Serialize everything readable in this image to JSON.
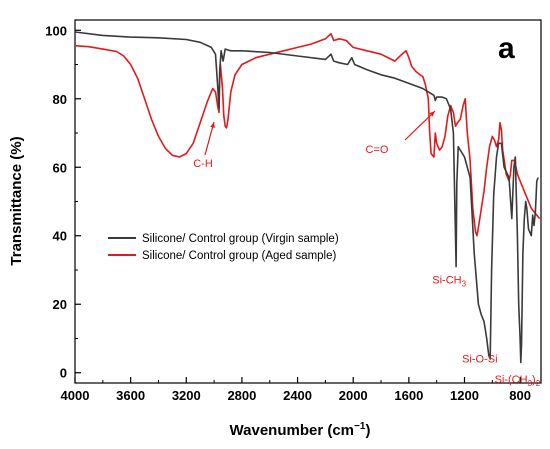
{
  "chart_data": {
    "type": "line",
    "panel_label": "a",
    "xlabel_main": "Wavenumber (cm",
    "xlabel_sup": "−1",
    "xlabel_end": ")",
    "ylabel": "Transmittance (%)",
    "xlim": [
      4000,
      650
    ],
    "ylim": [
      -3,
      103
    ],
    "x_reversed": true,
    "grid": false,
    "legend_position": "center-left",
    "x_ticks": [
      "4000",
      "3600",
      "3200",
      "2800",
      "2400",
      "2000",
      "1600",
      "1200",
      "800"
    ],
    "x_tick_values": [
      4000,
      3600,
      3200,
      2800,
      2400,
      2000,
      1600,
      1200,
      800
    ],
    "y_ticks": [
      "0",
      "20",
      "40",
      "60",
      "80",
      "100"
    ],
    "y_tick_values": [
      0,
      20,
      40,
      60,
      80,
      100
    ],
    "series": [
      {
        "name": "Silicone/ Control group (Virgin sample)",
        "color": "#3a3a3a",
        "points": [
          [
            4000,
            99.5
          ],
          [
            3800,
            98.5
          ],
          [
            3600,
            98
          ],
          [
            3400,
            97.8
          ],
          [
            3200,
            97.3
          ],
          [
            3100,
            96.5
          ],
          [
            3020,
            95
          ],
          [
            2990,
            93
          ],
          [
            2975,
            84
          ],
          [
            2965,
            77
          ],
          [
            2960,
            88
          ],
          [
            2950,
            94
          ],
          [
            2935,
            91
          ],
          [
            2920,
            94.5
          ],
          [
            2880,
            94
          ],
          [
            2800,
            94
          ],
          [
            2600,
            93.5
          ],
          [
            2400,
            92.5
          ],
          [
            2200,
            91.5
          ],
          [
            2160,
            93
          ],
          [
            2140,
            91
          ],
          [
            2100,
            90.5
          ],
          [
            2040,
            90
          ],
          [
            2010,
            92
          ],
          [
            1990,
            90
          ],
          [
            1900,
            88.5
          ],
          [
            1800,
            87
          ],
          [
            1700,
            86
          ],
          [
            1600,
            84.5
          ],
          [
            1500,
            83
          ],
          [
            1460,
            82
          ],
          [
            1420,
            81
          ],
          [
            1410,
            79.5
          ],
          [
            1400,
            80.5
          ],
          [
            1360,
            80.5
          ],
          [
            1330,
            80
          ],
          [
            1300,
            77
          ],
          [
            1280,
            70
          ],
          [
            1265,
            40
          ],
          [
            1260,
            31
          ],
          [
            1255,
            55
          ],
          [
            1245,
            66
          ],
          [
            1200,
            63
          ],
          [
            1160,
            57
          ],
          [
            1130,
            35
          ],
          [
            1100,
            20
          ],
          [
            1080,
            17
          ],
          [
            1060,
            15
          ],
          [
            1040,
            10
          ],
          [
            1025,
            5
          ],
          [
            1015,
            4
          ],
          [
            1005,
            30
          ],
          [
            990,
            52
          ],
          [
            970,
            63
          ],
          [
            955,
            67
          ],
          [
            935,
            67
          ],
          [
            915,
            60
          ],
          [
            880,
            57
          ],
          [
            860,
            45
          ],
          [
            845,
            60
          ],
          [
            835,
            63
          ],
          [
            820,
            40
          ],
          [
            810,
            20
          ],
          [
            800,
            10
          ],
          [
            795,
            3
          ],
          [
            790,
            8
          ],
          [
            780,
            35
          ],
          [
            770,
            45
          ],
          [
            760,
            50
          ],
          [
            752,
            48
          ],
          [
            740,
            42
          ],
          [
            720,
            40
          ],
          [
            710,
            46
          ],
          [
            700,
            43
          ],
          [
            690,
            47
          ],
          [
            680,
            56
          ],
          [
            670,
            57
          ]
        ]
      },
      {
        "name": "Silicone/ Control group (Aged sample)",
        "color": "#e31a1c",
        "points": [
          [
            4000,
            95.5
          ],
          [
            3900,
            95.2
          ],
          [
            3800,
            94.5
          ],
          [
            3700,
            93.8
          ],
          [
            3650,
            92.5
          ],
          [
            3600,
            90
          ],
          [
            3550,
            86
          ],
          [
            3500,
            80
          ],
          [
            3450,
            74
          ],
          [
            3400,
            69
          ],
          [
            3350,
            65.5
          ],
          [
            3300,
            63.5
          ],
          [
            3250,
            63
          ],
          [
            3200,
            64
          ],
          [
            3150,
            67
          ],
          [
            3100,
            73
          ],
          [
            3050,
            79
          ],
          [
            3010,
            83
          ],
          [
            2990,
            82
          ],
          [
            2975,
            78
          ],
          [
            2965,
            76
          ],
          [
            2960,
            86
          ],
          [
            2955,
            90
          ],
          [
            2940,
            83
          ],
          [
            2930,
            75
          ],
          [
            2920,
            72
          ],
          [
            2910,
            71.5
          ],
          [
            2900,
            74
          ],
          [
            2880,
            82
          ],
          [
            2850,
            87
          ],
          [
            2800,
            90
          ],
          [
            2700,
            92
          ],
          [
            2600,
            93
          ],
          [
            2500,
            94
          ],
          [
            2400,
            95
          ],
          [
            2300,
            96
          ],
          [
            2200,
            97.5
          ],
          [
            2160,
            99
          ],
          [
            2140,
            97
          ],
          [
            2100,
            97.5
          ],
          [
            2050,
            97
          ],
          [
            2000,
            95
          ],
          [
            1900,
            94
          ],
          [
            1800,
            93
          ],
          [
            1700,
            91
          ],
          [
            1650,
            93
          ],
          [
            1620,
            94
          ],
          [
            1600,
            92
          ],
          [
            1580,
            89.5
          ],
          [
            1550,
            88
          ],
          [
            1520,
            87
          ],
          [
            1500,
            86.5
          ],
          [
            1480,
            84
          ],
          [
            1460,
            80
          ],
          [
            1450,
            70
          ],
          [
            1440,
            64
          ],
          [
            1420,
            63
          ],
          [
            1410,
            70
          ],
          [
            1400,
            67
          ],
          [
            1380,
            65
          ],
          [
            1360,
            66
          ],
          [
            1340,
            69
          ],
          [
            1320,
            75
          ],
          [
            1300,
            78
          ],
          [
            1280,
            76
          ],
          [
            1265,
            72
          ],
          [
            1250,
            73
          ],
          [
            1230,
            74
          ],
          [
            1210,
            78
          ],
          [
            1195,
            80
          ],
          [
            1180,
            70
          ],
          [
            1160,
            62
          ],
          [
            1140,
            48
          ],
          [
            1120,
            41
          ],
          [
            1110,
            40
          ],
          [
            1090,
            45
          ],
          [
            1060,
            53
          ],
          [
            1040,
            60
          ],
          [
            1020,
            66
          ],
          [
            1000,
            69
          ],
          [
            985,
            68
          ],
          [
            970,
            66
          ],
          [
            955,
            68
          ],
          [
            945,
            73
          ],
          [
            935,
            71
          ],
          [
            925,
            65
          ],
          [
            900,
            58
          ],
          [
            880,
            56
          ],
          [
            870,
            58
          ],
          [
            860,
            62
          ],
          [
            840,
            62
          ],
          [
            820,
            58
          ],
          [
            800,
            56
          ],
          [
            780,
            54
          ],
          [
            760,
            52
          ],
          [
            740,
            50
          ],
          [
            720,
            48
          ],
          [
            700,
            47
          ],
          [
            680,
            46
          ],
          [
            660,
            45
          ]
        ]
      }
    ],
    "annotations": [
      {
        "id": "ch",
        "x": 2995,
        "y": 80,
        "text": "C-H",
        "has_arrow": true
      },
      {
        "id": "co",
        "x": 1455,
        "y": 76,
        "text": "C=O",
        "has_arrow": true
      },
      {
        "id": "sich3",
        "x": 1310,
        "y": 26,
        "text": "Si-CH",
        "sub": "3",
        "has_arrow": false
      },
      {
        "id": "siosi",
        "x": 1090,
        "y": 3,
        "text": "Si-O-Si",
        "has_arrow": false
      },
      {
        "id": "sich32",
        "x": 820,
        "y": -3,
        "text": "Si-(CH",
        "sub": "3",
        "end": ")",
        "sub2": "2",
        "has_arrow": false
      }
    ]
  }
}
